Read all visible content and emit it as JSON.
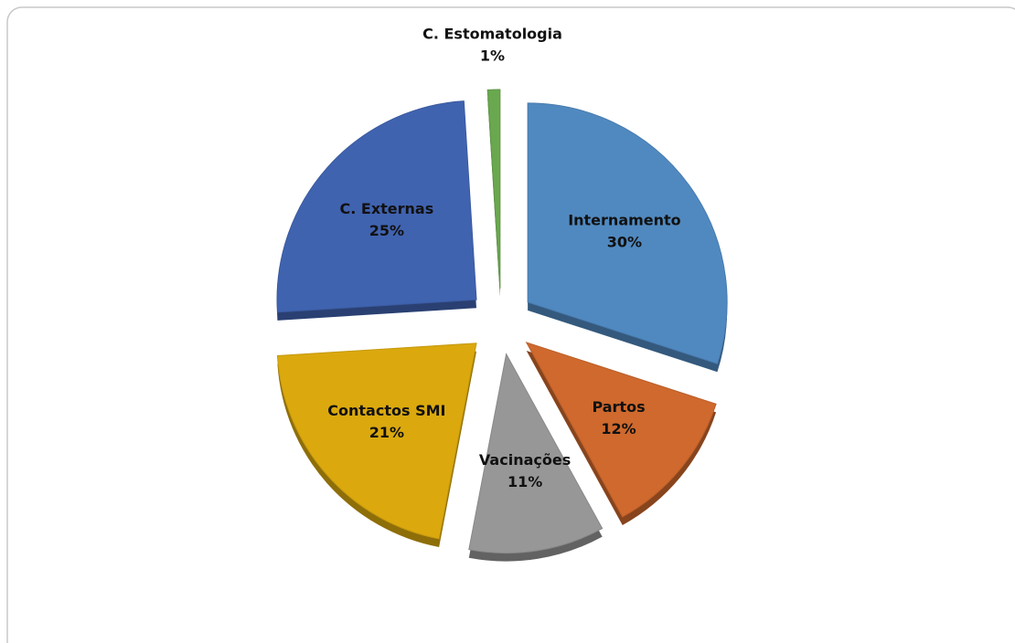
{
  "chart_data": {
    "type": "pie",
    "categories": [
      "Internamento",
      "Partos",
      "Vacinações",
      "Contactos SMI",
      "C. Externas",
      "C. Estomatologia"
    ],
    "values": [
      30,
      12,
      11,
      21,
      25,
      1
    ],
    "value_labels": [
      "30%",
      "12%",
      "11%",
      "21%",
      "25%",
      "1%"
    ],
    "colors": [
      "#5089c0",
      "#cf692d",
      "#979797",
      "#dba90e",
      "#4063b0",
      "#6aa84f"
    ],
    "exploded": true
  }
}
